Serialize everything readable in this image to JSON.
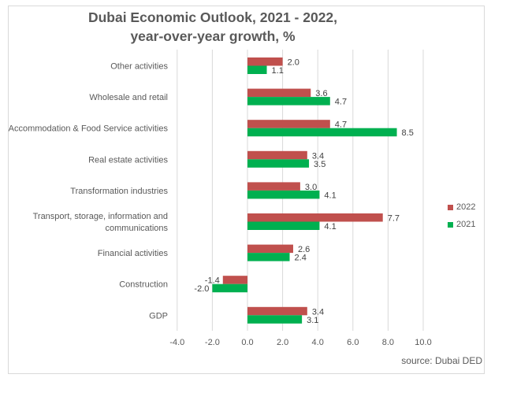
{
  "chart_data": {
    "type": "bar",
    "orientation": "horizontal",
    "title": "Dubai Economic Outlook, 2021 - 2022,",
    "subtitle": "year-over-year growth, %",
    "categories": [
      "Other activities",
      "Wholesale and retail",
      "Accommodation & Food Service activities",
      "Real estate activities",
      "Transformation industries",
      "Transport, storage, information and communications",
      "Financial activities",
      "Construction",
      "GDP"
    ],
    "category_label_lines": [
      [
        "Other activities"
      ],
      [
        "Wholesale and retail"
      ],
      [
        "Accommodation & Food Service activities"
      ],
      [
        "Real estate activities"
      ],
      [
        "Transformation industries"
      ],
      [
        "Transport, storage, information and",
        "communications"
      ],
      [
        "Financial activities"
      ],
      [
        "Construction"
      ],
      [
        "GDP"
      ]
    ],
    "series": [
      {
        "name": "2022",
        "color": "#C0504D",
        "values": [
          2.0,
          3.6,
          4.7,
          3.4,
          3.0,
          7.7,
          2.6,
          -1.4,
          3.4
        ],
        "labels": [
          "2.0",
          "3.6",
          "4.7",
          "3.4",
          "3.0",
          "7.7",
          "2.6",
          "-1.4",
          "3.4"
        ]
      },
      {
        "name": "2021",
        "color": "#00B050",
        "values": [
          1.1,
          4.7,
          8.5,
          3.5,
          4.1,
          4.1,
          2.4,
          -2.0,
          3.1
        ],
        "labels": [
          "1.1",
          "4.7",
          "8.5",
          "3.5",
          "4.1",
          "4.1",
          "2.4",
          "-2.0",
          "3.1"
        ]
      }
    ],
    "xlim": [
      -4.0,
      10.0
    ],
    "xticks": [
      -4.0,
      -2.0,
      0.0,
      2.0,
      4.0,
      6.0,
      8.0,
      10.0
    ],
    "xtick_labels": [
      "-4.0",
      "-2.0",
      "0.0",
      "2.0",
      "4.0",
      "6.0",
      "8.0",
      "10.0"
    ],
    "xlabel": "",
    "ylabel": "",
    "grid": "vertical",
    "legend": [
      {
        "name": "2022",
        "color": "#C0504D"
      },
      {
        "name": "2021",
        "color": "#00B050"
      }
    ],
    "legend_position": "right",
    "annotation": "source: Dubai DED"
  }
}
